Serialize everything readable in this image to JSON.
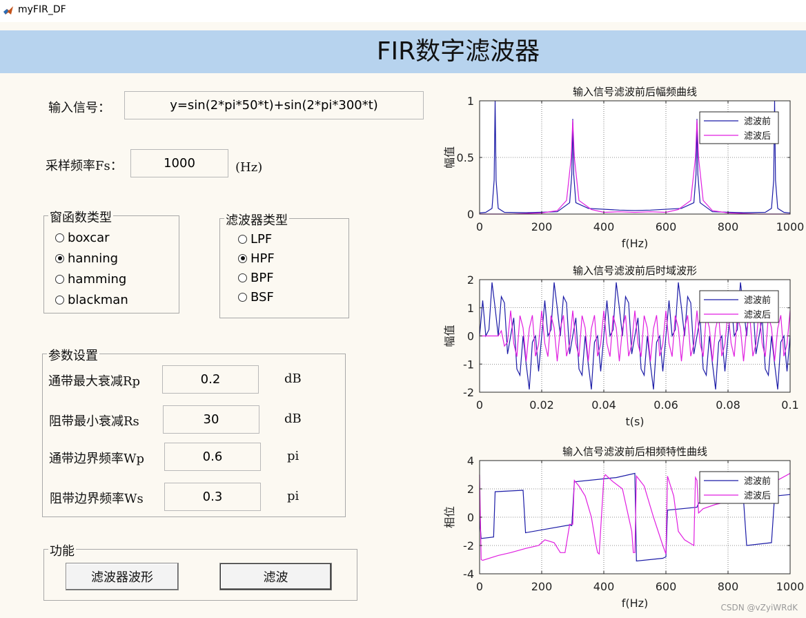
{
  "window": {
    "title": "myFIR_DF",
    "icon": "matlab-icon"
  },
  "banner": {
    "title": "FIR数字滤波器"
  },
  "input": {
    "label": "输入信号：",
    "value": "y=sin(2*pi*50*t)+sin(2*pi*300*t)"
  },
  "sampling": {
    "label": "采样频率Fs：",
    "value": "1000",
    "unit": "(Hz)"
  },
  "window_group": {
    "title": "窗函数类型",
    "options": [
      "boxcar",
      "hanning",
      "hamming",
      "blackman"
    ],
    "selected": "hanning"
  },
  "filter_group": {
    "title": "滤波器类型",
    "options": [
      "LPF",
      "HPF",
      "BPF",
      "BSF"
    ],
    "selected": "HPF"
  },
  "params": {
    "title": "参数设置",
    "rows": [
      {
        "label": "通带最大衰减Rp",
        "value": "0.2",
        "unit": "dB"
      },
      {
        "label": "阻带最小衰减Rs",
        "value": "30",
        "unit": "dB"
      },
      {
        "label": "通带边界频率Wp",
        "value": "0.6",
        "unit": "pi"
      },
      {
        "label": "阻带边界频率Ws",
        "value": "0.3",
        "unit": "pi"
      }
    ]
  },
  "functions": {
    "title": "功能",
    "buttons": [
      "滤波器波形",
      "滤波"
    ]
  },
  "watermark": "CSDN @vZyiWRdK",
  "chart_data": [
    {
      "type": "line",
      "title": "输入信号滤波前后幅频曲线",
      "xlabel": "f(Hz)",
      "ylabel": "幅值",
      "xlim": [
        0,
        1000
      ],
      "ylim": [
        0,
        1
      ],
      "xticks": [
        0,
        200,
        400,
        600,
        800,
        1000
      ],
      "yticks": [
        0,
        0.5,
        1
      ],
      "grid": true,
      "legend": "top-right",
      "series": [
        {
          "name": "滤波前",
          "color": "#1a1aa6",
          "x": [
            0,
            20,
            40,
            47,
            50,
            53,
            60,
            80,
            150,
            250,
            290,
            297,
            300,
            303,
            310,
            350,
            450,
            500,
            550,
            650,
            690,
            697,
            700,
            703,
            710,
            750,
            850,
            920,
            940,
            947,
            950,
            953,
            960,
            980,
            1000
          ],
          "values": [
            0.01,
            0.015,
            0.05,
            0.3,
            1.0,
            0.3,
            0.05,
            0.015,
            0.012,
            0.02,
            0.1,
            0.35,
            0.84,
            0.35,
            0.1,
            0.05,
            0.035,
            0.032,
            0.035,
            0.05,
            0.1,
            0.35,
            0.84,
            0.35,
            0.1,
            0.02,
            0.012,
            0.015,
            0.05,
            0.3,
            1.0,
            0.3,
            0.05,
            0.015,
            0.01
          ]
        },
        {
          "name": "滤波后",
          "color": "#e01ee0",
          "x": [
            0,
            50,
            100,
            150,
            200,
            250,
            280,
            295,
            300,
            305,
            320,
            360,
            400,
            450,
            500,
            550,
            600,
            640,
            680,
            695,
            700,
            705,
            720,
            750,
            800,
            850,
            900,
            950,
            1000
          ],
          "values": [
            0.0,
            0.0,
            0.0,
            0.005,
            0.01,
            0.03,
            0.12,
            0.5,
            0.83,
            0.5,
            0.12,
            0.04,
            0.015,
            0.02,
            0.015,
            0.02,
            0.015,
            0.04,
            0.12,
            0.5,
            0.83,
            0.5,
            0.12,
            0.03,
            0.01,
            0.005,
            0.0,
            0.0,
            0.0
          ]
        }
      ]
    },
    {
      "type": "line",
      "title": "输入信号滤波前后时域波形",
      "xlabel": "t(s)",
      "ylabel": "幅值",
      "xlim": [
        0,
        0.1
      ],
      "ylim": [
        -2,
        2
      ],
      "xticks": [
        0,
        0.02,
        0.04,
        0.06,
        0.08,
        0.1
      ],
      "yticks": [
        -2,
        -1,
        0,
        1,
        2
      ],
      "grid": true,
      "legend": "top-right",
      "series": [
        {
          "name": "滤波前",
          "color": "#1a1aa6",
          "formula": "sin(2*pi*50*t)+sin(2*pi*300*t)",
          "sample_rate": 1000
        },
        {
          "name": "滤波后",
          "color": "#e01ee0",
          "formula": "filtered: 300 Hz component only",
          "sample_rate": 1000
        }
      ]
    },
    {
      "type": "line",
      "title": "输入信号滤波前后相频特性曲线",
      "xlabel": "f(Hz)",
      "ylabel": "相位",
      "xlim": [
        0,
        1000
      ],
      "ylim": [
        -4,
        4
      ],
      "xticks": [
        0,
        200,
        400,
        600,
        800,
        1000
      ],
      "yticks": [
        -4,
        -2,
        0,
        2,
        4
      ],
      "grid": true,
      "legend": "top-right",
      "series": [
        {
          "name": "滤波前",
          "color": "#1a1aa6",
          "x": [
            0,
            5,
            45,
            50,
            140,
            148,
            290,
            297,
            305,
            440,
            500,
            505,
            590,
            600,
            605,
            700,
            705,
            850,
            860,
            940,
            950,
            1000
          ],
          "values": [
            -0.1,
            -1.5,
            -1.4,
            1.8,
            1.9,
            -1.1,
            -0.55,
            -0.6,
            2.5,
            2.8,
            3.1,
            -3.1,
            -2.9,
            -2.8,
            0.5,
            0.7,
            1.0,
            1.2,
            -2.0,
            -1.8,
            1.5,
            1.6
          ]
        },
        {
          "name": "滤波后",
          "color": "#e01ee0",
          "x": [
            0,
            5,
            10,
            60,
            100,
            150,
            190,
            210,
            240,
            260,
            275,
            290,
            300,
            305,
            320,
            340,
            360,
            375,
            380,
            385,
            395,
            400,
            405,
            430,
            460,
            490,
            495,
            500,
            505,
            530,
            560,
            590,
            600,
            605,
            625,
            640,
            660,
            690,
            695,
            700,
            705,
            720,
            760,
            800,
            850,
            900,
            950,
            1000
          ],
          "values": [
            3.0,
            -3.0,
            -3.05,
            -2.7,
            -2.5,
            -2.2,
            -2.0,
            -1.6,
            -1.8,
            -2.5,
            -2.5,
            -0.5,
            -0.5,
            2.6,
            2.2,
            1.5,
            0.0,
            -2.0,
            -2.5,
            -2.6,
            1.0,
            2.8,
            3.0,
            2.5,
            2.0,
            -1.0,
            -2.5,
            -2.5,
            2.9,
            2.2,
            0.0,
            -2.0,
            -2.6,
            2.9,
            1.5,
            -1.0,
            -1.6,
            -2.0,
            2.8,
            2.6,
            0.3,
            0.6,
            0.9,
            1.1,
            1.5,
            2.0,
            2.5,
            3.1
          ]
        }
      ]
    }
  ]
}
